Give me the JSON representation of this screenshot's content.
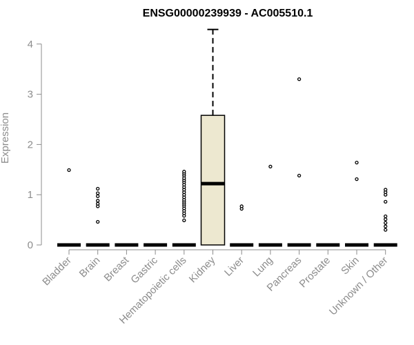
{
  "chart_data": {
    "type": "box",
    "title": "ENSG00000239939 - AC005510.1",
    "ylabel": "Expression",
    "xlabel": "",
    "ylim": [
      0,
      4
    ],
    "yticks": [
      0,
      1,
      2,
      3,
      4
    ],
    "grid": false,
    "colors": {
      "box_fill": "#ede8d0",
      "box_stroke": "#000000",
      "axis": "#8c8c8c",
      "label": "#8c8c8c"
    },
    "categories": [
      "Bladder",
      "Brain",
      "Breast",
      "Gastric",
      "Hematopoietic cells",
      "Kidney",
      "Liver",
      "Lung",
      "Pancreas",
      "Prostate",
      "Skin",
      "Unknown / Other"
    ],
    "boxes": [
      {
        "category": "Bladder",
        "min": 0,
        "q1": 0,
        "median": 0,
        "q3": 0,
        "max": 0,
        "outliers": [
          1.49
        ]
      },
      {
        "category": "Brain",
        "min": 0,
        "q1": 0,
        "median": 0,
        "q3": 0,
        "max": 0,
        "outliers": [
          0.46,
          0.77,
          0.82,
          0.88,
          0.97,
          1.03,
          1.12
        ]
      },
      {
        "category": "Breast",
        "min": 0,
        "q1": 0,
        "median": 0,
        "q3": 0,
        "max": 0,
        "outliers": []
      },
      {
        "category": "Gastric",
        "min": 0,
        "q1": 0,
        "median": 0,
        "q3": 0,
        "max": 0,
        "outliers": []
      },
      {
        "category": "Hematopoietic cells",
        "min": 0,
        "q1": 0,
        "median": 0,
        "q3": 0,
        "max": 0,
        "outliers": [
          0.49,
          0.58,
          0.63,
          0.68,
          0.73,
          0.78,
          0.82,
          0.86,
          0.9,
          0.95,
          1.0,
          1.05,
          1.1,
          1.15,
          1.2,
          1.25,
          1.29,
          1.33,
          1.38,
          1.42,
          1.46
        ]
      },
      {
        "category": "Kidney",
        "min": 0,
        "q1": 0,
        "median": 1.22,
        "q3": 2.58,
        "max": 4.29,
        "outliers": []
      },
      {
        "category": "Liver",
        "min": 0,
        "q1": 0,
        "median": 0,
        "q3": 0,
        "max": 0,
        "outliers": [
          0.72,
          0.77
        ]
      },
      {
        "category": "Lung",
        "min": 0,
        "q1": 0,
        "median": 0,
        "q3": 0,
        "max": 0,
        "outliers": [
          1.56
        ]
      },
      {
        "category": "Pancreas",
        "min": 0,
        "q1": 0,
        "median": 0,
        "q3": 0,
        "max": 0,
        "outliers": [
          1.38,
          3.3
        ]
      },
      {
        "category": "Prostate",
        "min": 0,
        "q1": 0,
        "median": 0,
        "q3": 0,
        "max": 0,
        "outliers": []
      },
      {
        "category": "Skin",
        "min": 0,
        "q1": 0,
        "median": 0,
        "q3": 0,
        "max": 0,
        "outliers": [
          1.31,
          1.64
        ]
      },
      {
        "category": "Unknown / Other",
        "min": 0,
        "q1": 0,
        "median": 0,
        "q3": 0,
        "max": 0,
        "outliers": [
          0.3,
          0.37,
          0.44,
          0.51,
          0.57,
          0.86,
          1.0,
          1.05,
          1.1
        ]
      }
    ]
  }
}
